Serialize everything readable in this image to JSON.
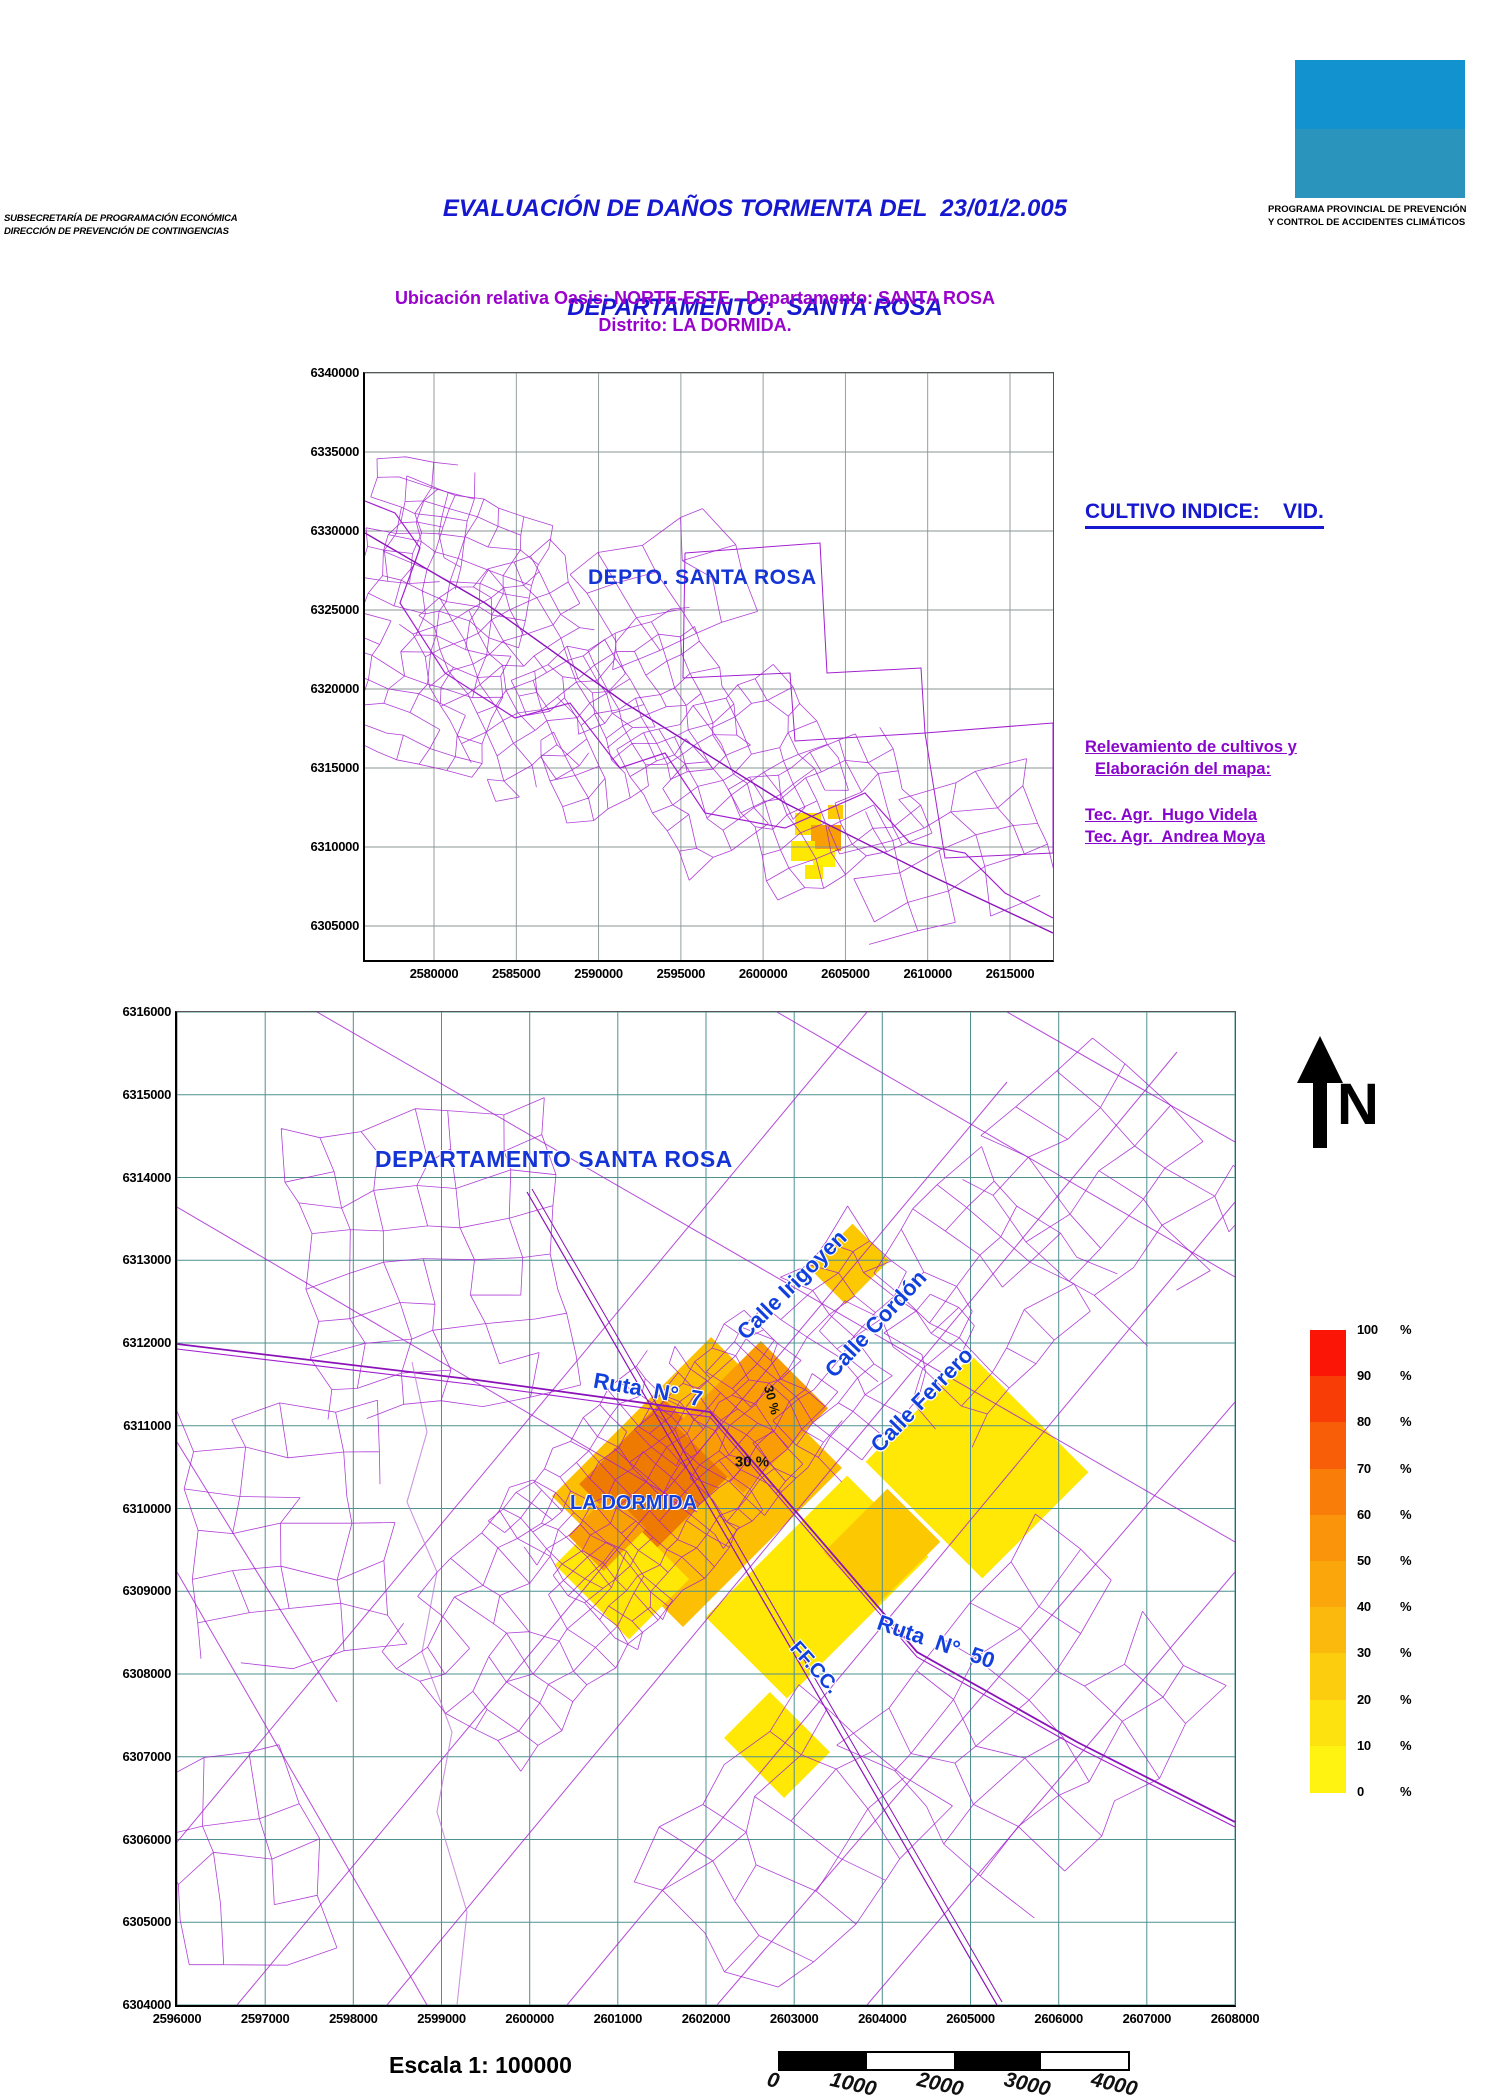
{
  "header": {
    "agency_line1": "SUBSECRETARÍA DE PROGRAMACIÓN ECONÓMICA",
    "agency_line2": "DIRECCIÓN DE PREVENCIÓN DE CONTINGENCIAS",
    "title_line1": "EVALUACIÓN DE DAÑOS TORMENTA DEL  23/01/2.005",
    "title_line2": "DEPARTAMENTO:  SANTA ROSA",
    "program_line1": "PROGRAMA PROVINCIAL DE PREVENCIÓN",
    "program_line2": "Y CONTROL DE ACCIDENTES CLIMÁTICOS",
    "logo_top_color": "#1292cf",
    "logo_bottom_color": "#2b94bd"
  },
  "subtitle": {
    "line1": "Ubicación relativa Oasis: NORTE-ESTE - Departamento: SANTA ROSA",
    "line2": "Distrito: LA DORMIDA."
  },
  "cultivo_label": "CULTIVO INDICE:    VID.",
  "credits": {
    "line1": "Relevamiento de cultivos y",
    "line2": "Elaboración del mapa:",
    "tech1": "Tec. Agr.  Hugo Videla",
    "tech2": "Tec. Agr.  Andrea Moya"
  },
  "map1": {
    "title": "DEPTO. SANTA ROSA",
    "y_ticks": [
      "6340000",
      "6335000",
      "6330000",
      "6325000",
      "6320000",
      "6315000",
      "6310000",
      "6305000"
    ],
    "x_ticks": [
      "2580000",
      "2585000",
      "2590000",
      "2595000",
      "2600000",
      "2605000",
      "2610000",
      "2615000"
    ]
  },
  "map2": {
    "title": "DEPARTAMENTO SANTA ROSA",
    "place": "LA DORMIDA",
    "streets": [
      "Calle Irigoyen",
      "Calle Cordón",
      "Calle Ferrero",
      "Ruta  N°  7",
      "Ruta  N°  50",
      "FF.CC."
    ],
    "annotations": [
      "30 %",
      "30 %"
    ],
    "y_ticks": [
      "6316000",
      "6315000",
      "6314000",
      "6313000",
      "6312000",
      "6311000",
      "6310000",
      "6309000",
      "6308000",
      "6307000",
      "6306000",
      "6305000",
      "6304000"
    ],
    "x_ticks": [
      "2596000",
      "2597000",
      "2598000",
      "2599000",
      "2600000",
      "2601000",
      "2602000",
      "2603000",
      "2604000",
      "2605000",
      "2606000",
      "2607000",
      "2608000"
    ]
  },
  "north_label": "N",
  "legend": {
    "values": [
      "100",
      "90",
      "80",
      "70",
      "60",
      "50",
      "40",
      "30",
      "20",
      "10",
      "0"
    ],
    "unit": "%",
    "colors": [
      "#fb1506",
      "#f93d07",
      "#f85e08",
      "#f97d09",
      "#fa940b",
      "#fba70c",
      "#fcb90d",
      "#fccc0e",
      "#fde210",
      "#fff312"
    ]
  },
  "scale": {
    "label": "Escala 1: 100000",
    "bar_labels": [
      "0",
      "1000",
      "2000",
      "3000",
      "4000"
    ]
  }
}
